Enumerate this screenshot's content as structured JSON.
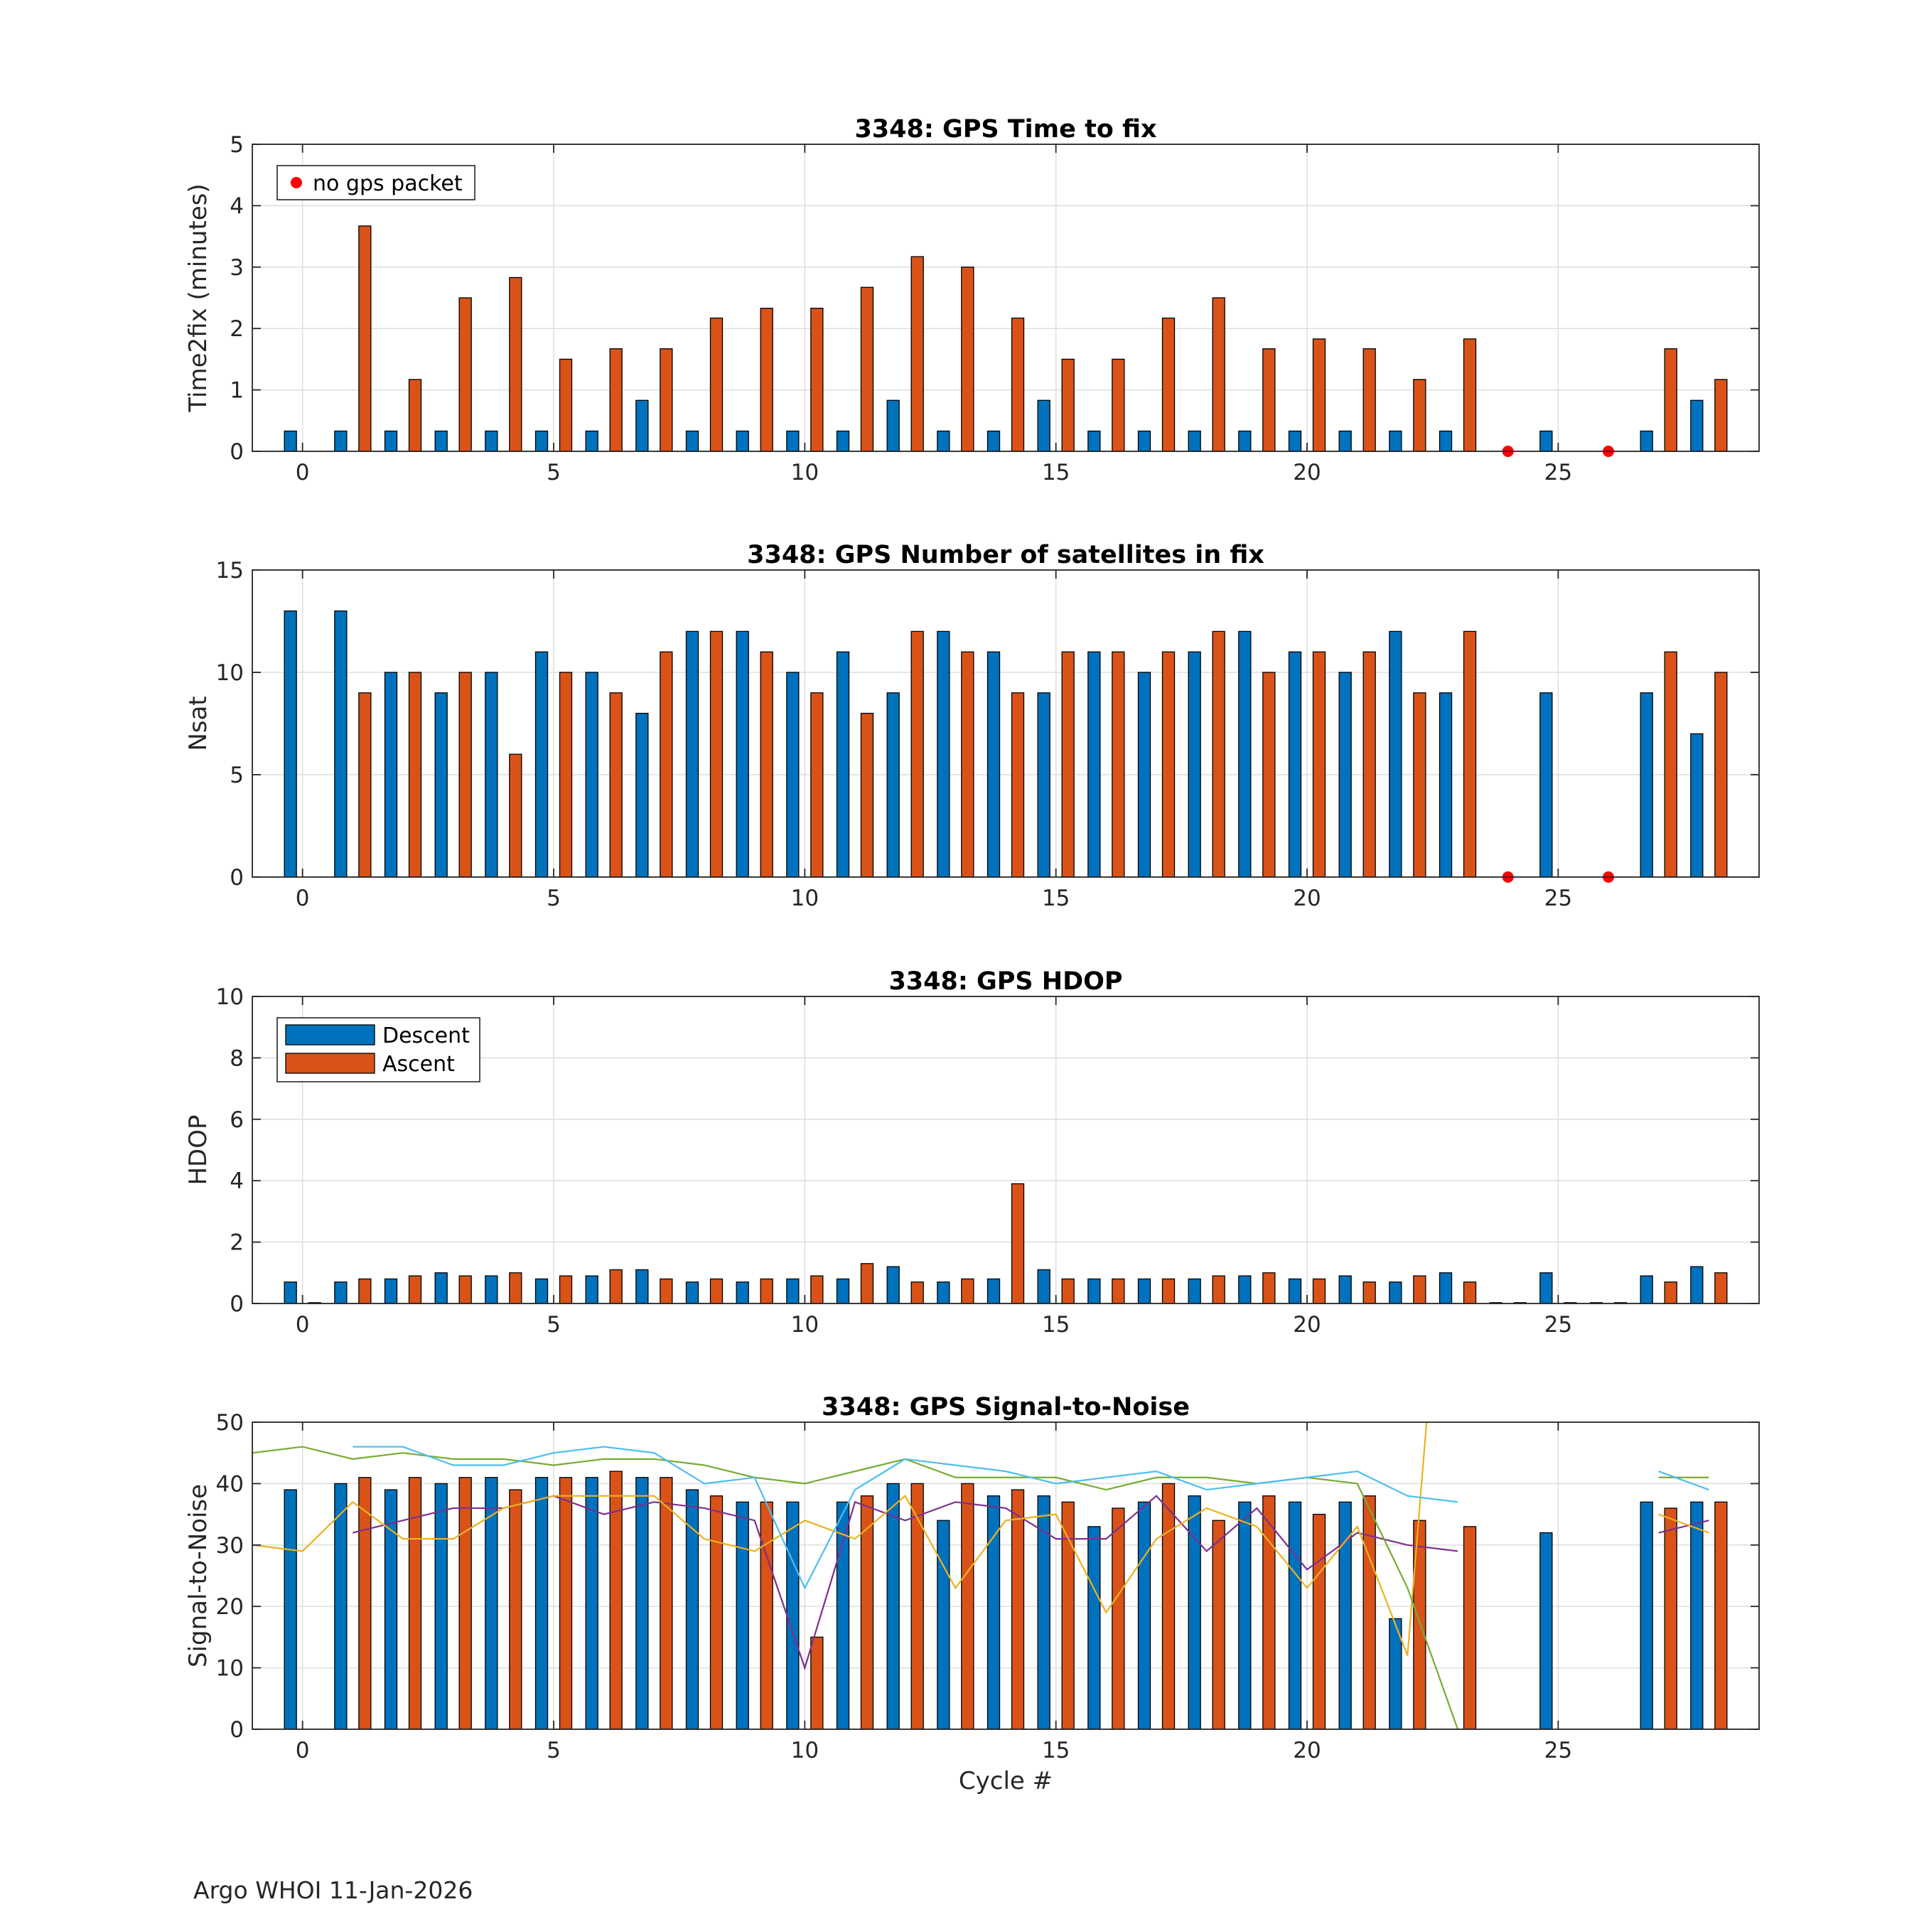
{
  "footer": "Argo WHOI 11-Jan-2026",
  "colors": {
    "descent": "#0072BD",
    "ascent": "#D95319",
    "no_gps": "#FF0000",
    "snr_lines": [
      "#7E2F8E",
      "#EDB120",
      "#77AC30",
      "#4DBEEE"
    ]
  },
  "chart_data": [
    {
      "type": "bar",
      "title": "3348: GPS Time to fix",
      "xlabel": "",
      "ylabel": "Time2fix (minutes)",
      "xlim": [
        -1,
        29
      ],
      "ylim": [
        0,
        5
      ],
      "xticks": [
        0,
        5,
        10,
        15,
        20,
        25
      ],
      "yticks": [
        0,
        1,
        2,
        3,
        4,
        5
      ],
      "grid": true,
      "legend": {
        "placement": "top-left",
        "entries": [
          "no gps packet"
        ]
      },
      "x": [
        0,
        1,
        2,
        3,
        4,
        5,
        6,
        7,
        8,
        9,
        10,
        11,
        12,
        13,
        14,
        15,
        16,
        17,
        18,
        19,
        20,
        21,
        22,
        23,
        24,
        25,
        26,
        27,
        28
      ],
      "series": [
        {
          "name": "Descent",
          "values": [
            0.33,
            0.33,
            0.33,
            0.33,
            0.33,
            0.33,
            0.33,
            0.83,
            0.33,
            0.33,
            0.33,
            0.33,
            0.83,
            0.33,
            0.33,
            0.83,
            0.33,
            0.33,
            0.33,
            0.33,
            0.33,
            0.33,
            0.33,
            0.33,
            null,
            0.33,
            null,
            0.33,
            0.83
          ]
        },
        {
          "name": "Ascent",
          "values": [
            null,
            3.67,
            1.17,
            2.5,
            2.83,
            1.5,
            1.67,
            1.67,
            2.17,
            2.33,
            2.33,
            2.67,
            3.17,
            3.0,
            2.17,
            1.5,
            1.5,
            2.17,
            2.5,
            1.67,
            1.83,
            1.67,
            1.17,
            1.83,
            null,
            null,
            null,
            1.67,
            1.17
          ]
        }
      ],
      "no_gps_packet": [
        24,
        26
      ]
    },
    {
      "type": "bar",
      "title": "3348: GPS Number of satellites in fix",
      "xlabel": "",
      "ylabel": "Nsat",
      "xlim": [
        -1,
        29
      ],
      "ylim": [
        0,
        15
      ],
      "xticks": [
        0,
        5,
        10,
        15,
        20,
        25
      ],
      "yticks": [
        0,
        5,
        10,
        15
      ],
      "grid": true,
      "x": [
        0,
        1,
        2,
        3,
        4,
        5,
        6,
        7,
        8,
        9,
        10,
        11,
        12,
        13,
        14,
        15,
        16,
        17,
        18,
        19,
        20,
        21,
        22,
        23,
        24,
        25,
        26,
        27,
        28
      ],
      "series": [
        {
          "name": "Descent",
          "values": [
            13,
            13,
            10,
            9,
            10,
            11,
            10,
            8,
            12,
            12,
            10,
            11,
            9,
            12,
            11,
            9,
            11,
            10,
            11,
            12,
            11,
            10,
            12,
            9,
            null,
            9,
            null,
            9,
            7
          ]
        },
        {
          "name": "Ascent",
          "values": [
            null,
            9,
            10,
            10,
            6,
            10,
            9,
            11,
            12,
            11,
            9,
            8,
            12,
            11,
            9,
            11,
            11,
            11,
            12,
            10,
            11,
            11,
            9,
            12,
            null,
            null,
            null,
            11,
            10
          ]
        }
      ],
      "no_gps_packet": [
        24,
        26
      ]
    },
    {
      "type": "bar",
      "title": "3348: GPS HDOP",
      "xlabel": "",
      "ylabel": "HDOP",
      "xlim": [
        -1,
        29
      ],
      "ylim": [
        0,
        10
      ],
      "xticks": [
        0,
        5,
        10,
        15,
        20,
        25
      ],
      "yticks": [
        0,
        2,
        4,
        6,
        8,
        10
      ],
      "grid": true,
      "legend": {
        "placement": "top-left",
        "entries": [
          "Descent",
          "Ascent"
        ]
      },
      "x": [
        0,
        1,
        2,
        3,
        4,
        5,
        6,
        7,
        8,
        9,
        10,
        11,
        12,
        13,
        14,
        15,
        16,
        17,
        18,
        19,
        20,
        21,
        22,
        23,
        24,
        25,
        26,
        27,
        28
      ],
      "series": [
        {
          "name": "Descent",
          "values": [
            0.7,
            0.7,
            0.8,
            1.0,
            0.9,
            0.8,
            0.9,
            1.1,
            0.7,
            0.7,
            0.8,
            0.8,
            1.2,
            0.7,
            0.8,
            1.1,
            0.8,
            0.8,
            0.8,
            0.9,
            0.8,
            0.9,
            0.7,
            1.0,
            0,
            1.0,
            0,
            0.9,
            1.2
          ]
        },
        {
          "name": "Ascent",
          "values": [
            0,
            0.8,
            0.9,
            0.9,
            1.0,
            0.9,
            1.1,
            0.8,
            0.8,
            0.8,
            0.9,
            1.3,
            0.7,
            0.8,
            3.9,
            0.8,
            0.8,
            0.8,
            0.9,
            1.0,
            0.8,
            0.7,
            0.9,
            0.7,
            0,
            0,
            0,
            0.7,
            1.0
          ]
        }
      ]
    },
    {
      "type": "bar",
      "title": "3348: GPS Signal-to-Noise",
      "xlabel": "Cycle #",
      "ylabel": "Signal-to-Noise",
      "xlim": [
        -1,
        29
      ],
      "ylim": [
        0,
        50
      ],
      "xticks": [
        0,
        5,
        10,
        15,
        20,
        25
      ],
      "yticks": [
        0,
        10,
        20,
        30,
        40,
        50
      ],
      "grid": true,
      "x": [
        0,
        1,
        2,
        3,
        4,
        5,
        6,
        7,
        8,
        9,
        10,
        11,
        12,
        13,
        14,
        15,
        16,
        17,
        18,
        19,
        20,
        21,
        22,
        23,
        24,
        25,
        26,
        27,
        28
      ],
      "series": [
        {
          "name": "Descent",
          "values": [
            39,
            40,
            39,
            40,
            41,
            41,
            41,
            41,
            39,
            37,
            37,
            37,
            40,
            34,
            38,
            38,
            33,
            37,
            38,
            37,
            37,
            37,
            18,
            null,
            null,
            32,
            null,
            37,
            37
          ]
        },
        {
          "name": "Ascent",
          "values": [
            null,
            41,
            41,
            41,
            39,
            41,
            42,
            41,
            38,
            37,
            15,
            38,
            40,
            40,
            39,
            37,
            36,
            40,
            34,
            38,
            35,
            38,
            34,
            33,
            null,
            null,
            null,
            36,
            37
          ]
        }
      ],
      "lines": [
        {
          "x": [
            1,
            2,
            3,
            4,
            5,
            6,
            7,
            8,
            9,
            10,
            11,
            12,
            13,
            14,
            15,
            16,
            17,
            18,
            19,
            20,
            21,
            22,
            23
          ],
          "values": [
            32,
            34,
            36,
            36,
            38,
            35,
            37,
            36,
            34,
            10,
            37,
            34,
            37,
            36,
            31,
            31,
            38,
            29,
            36,
            26,
            32,
            30,
            29
          ]
        },
        {
          "x": [
            -1,
            0,
            1,
            2,
            3,
            4,
            5,
            6,
            7,
            8,
            9,
            10,
            11,
            12,
            13,
            14,
            15,
            16,
            17,
            18,
            19,
            20,
            21,
            22,
            22.4
          ],
          "values": [
            30,
            29,
            37,
            31,
            31,
            36,
            38,
            38,
            38,
            31,
            29,
            34,
            31,
            38,
            23,
            34,
            35,
            19,
            31,
            36,
            33,
            23,
            33,
            12,
            52
          ]
        },
        {
          "x": [
            -1,
            0,
            1,
            2,
            3,
            4,
            5,
            6,
            7,
            8,
            9,
            10,
            11,
            12,
            13,
            14,
            15,
            16,
            17,
            18,
            19,
            20,
            21,
            22,
            23
          ],
          "values": [
            45,
            46,
            44,
            45,
            44,
            44,
            43,
            44,
            44,
            43,
            41,
            40,
            42,
            44,
            41,
            41,
            41,
            39,
            41,
            41,
            40,
            41,
            40,
            23,
            0
          ]
        },
        {
          "x": [
            1,
            2,
            3,
            4,
            5,
            6,
            7,
            8,
            9,
            10,
            11,
            12,
            13,
            14,
            15,
            16,
            17,
            18,
            19,
            20,
            21,
            22,
            23
          ],
          "values": [
            46,
            46,
            43,
            43,
            45,
            46,
            45,
            40,
            41,
            23,
            39,
            44,
            43,
            42,
            40,
            41,
            42,
            39,
            40,
            41,
            42,
            38,
            37
          ]
        },
        {
          "x": [
            27,
            28
          ],
          "values": [
            32,
            34
          ]
        },
        {
          "x": [
            27,
            28
          ],
          "values": [
            35,
            32
          ]
        },
        {
          "x": [
            27,
            28
          ],
          "values": [
            41,
            41
          ]
        },
        {
          "x": [
            27,
            28
          ],
          "values": [
            42,
            39
          ]
        }
      ]
    }
  ]
}
